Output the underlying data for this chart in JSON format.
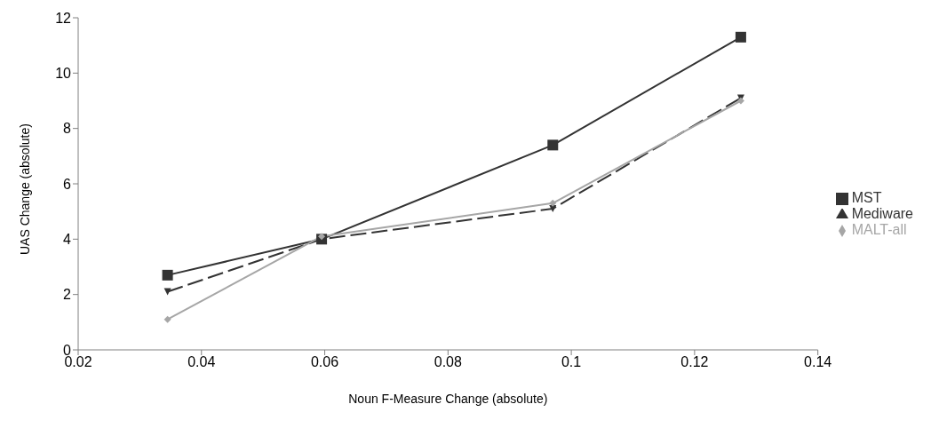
{
  "chart_data": {
    "type": "line",
    "xlabel": "Noun F-Measure Change (absolute)",
    "ylabel": "UAS Change (absolute)",
    "x": [
      0.0345,
      0.0595,
      0.097,
      0.1275
    ],
    "series": [
      {
        "name": "MST",
        "color": "#333333",
        "values": [
          2.7,
          4.0,
          7.4,
          11.3
        ],
        "marker": "square",
        "line_style": "solid"
      },
      {
        "name": "Mediware",
        "color": "#333333",
        "values": [
          2.1,
          4.0,
          5.1,
          9.1
        ],
        "marker": "triangle",
        "line_style": "dashed"
      },
      {
        "name": "MALT-all",
        "color": "#a6a6a6",
        "values": [
          1.1,
          4.1,
          5.3,
          9.0
        ],
        "marker": "diamond",
        "line_style": "solid"
      }
    ],
    "xlim": [
      0.02,
      0.14
    ],
    "xticks": [
      0.02,
      0.04,
      0.06,
      0.08,
      0.1,
      0.12,
      0.14
    ],
    "ylim": [
      0,
      12
    ],
    "yticks": [
      0,
      2,
      4,
      6,
      8,
      10,
      12
    ],
    "grid": false,
    "legend": "right"
  }
}
